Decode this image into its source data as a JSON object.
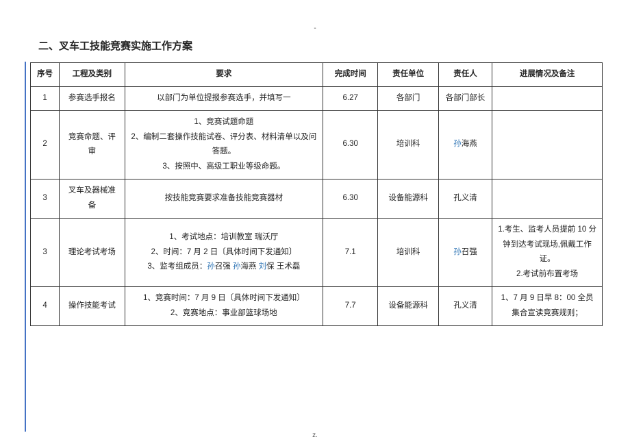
{
  "page_marker_top": "-",
  "page_marker_bottom": "z.",
  "section_title": "二、叉车工技能竞赛实施工作方案",
  "columns": [
    "序号",
    "工程及类别",
    "要求",
    "完成时间",
    "责任单位",
    "责任人",
    "进展情况及备注"
  ],
  "rows": [
    {
      "no": "1",
      "cat": "参赛选手报名",
      "req_lines": [
        {
          "t": "以部门为单位提报参赛选手，并填写一"
        }
      ],
      "time": "6.27",
      "dept": "各部门",
      "owner_parts": [
        {
          "t": "各部门部长"
        }
      ],
      "note_lines": []
    },
    {
      "no": "2",
      "cat": "竞赛命题、评审",
      "req_lines": [
        {
          "t": "1、竞赛试题命题"
        },
        {
          "t": "2、编制二套操作技能试卷、评分表、材料清单以及问答题。"
        },
        {
          "t": "3、按照中、高级工职业等级命题。"
        }
      ],
      "time": "6.30",
      "dept": "培训科",
      "owner_parts": [
        {
          "t": "孙",
          "hl": true
        },
        {
          "t": "海燕"
        }
      ],
      "note_lines": []
    },
    {
      "no": "3",
      "cat": "叉车及器械准备",
      "req_lines": [
        {
          "t": "按技能竞赛要求准备技能竞赛器材"
        }
      ],
      "time": "6.30",
      "dept": "设备能源科",
      "owner_parts": [
        {
          "t": "孔义清"
        }
      ],
      "note_lines": []
    },
    {
      "no": "3",
      "cat": "理论考试考场",
      "req_lines": [
        {
          "t": "1、考试地点：培训教室  瑞沃厅"
        },
        {
          "t": "2、时间：7 月 2 日〔具体时间下发通知〕"
        },
        {
          "parts": [
            {
              "t": "3、监考组成员："
            },
            {
              "t": "孙",
              "hl": true
            },
            {
              "t": "召强  "
            },
            {
              "t": "孙",
              "hl": true
            },
            {
              "t": "海燕  "
            },
            {
              "t": "刘",
              "hl": true
            },
            {
              "t": "保  王术磊"
            }
          ]
        }
      ],
      "time": "7.1",
      "dept": "培训科",
      "owner_parts": [
        {
          "t": "孙",
          "hl": true
        },
        {
          "t": "召强"
        }
      ],
      "note_lines": [
        {
          "t": "1.考生、监考人员提前 10 分钟到达考试现场,佩戴工作证。"
        },
        {
          "t": "2.考试前布置考场"
        }
      ]
    },
    {
      "no": "4",
      "cat": "操作技能考试",
      "req_lines": [
        {
          "t": "1、竞赛时间：7 月 9 日〔具体时间下发通知〕"
        },
        {
          "t": "2、竞赛地点：事业部篮球场地"
        }
      ],
      "time": "7.7",
      "dept": "设备能源科",
      "owner_parts": [
        {
          "t": "孔义清"
        }
      ],
      "note_lines": [
        {
          "t": "1、7 月 9 日早 8：00 全员集合宣读竞赛规则；"
        }
      ]
    }
  ],
  "colors": {
    "accent": "#4472c4",
    "link": "#2e74b5",
    "border": "#333333",
    "text": "#222222",
    "bg": "#ffffff"
  }
}
